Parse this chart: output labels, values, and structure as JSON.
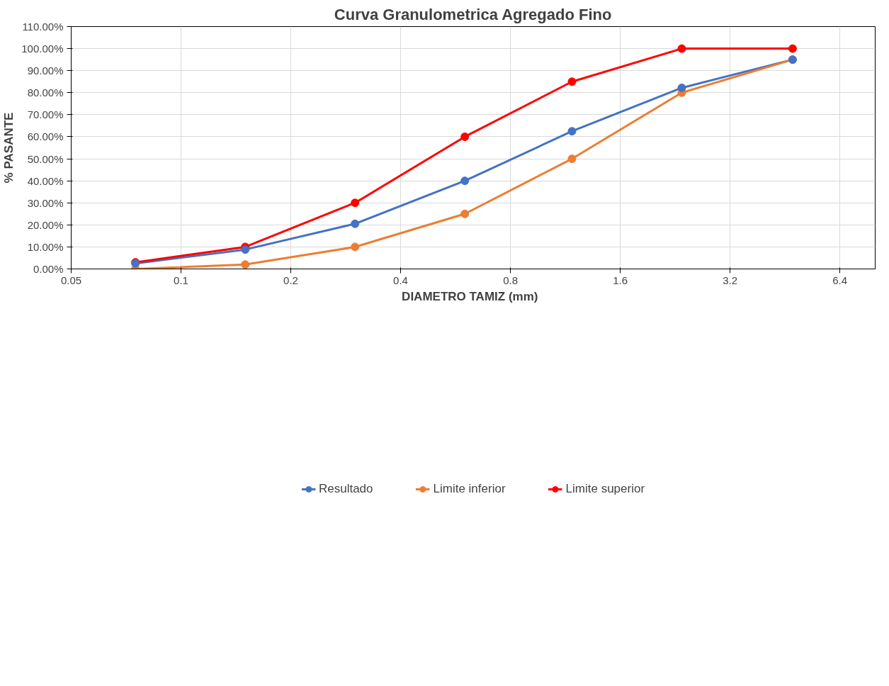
{
  "chart_data": {
    "type": "line",
    "title": "Curva Granulometrica Agregado Fino",
    "xlabel": "DIAMETRO  TAMIZ  (mm)",
    "ylabel": "% PASANTE",
    "x": [
      0.075,
      0.15,
      0.3,
      0.6,
      1.18,
      2.36,
      4.75
    ],
    "series": [
      {
        "name": "Resultado",
        "color": "#4472c4",
        "values": [
          2.5,
          8.8,
          20.5,
          40,
          62.5,
          82.2,
          95
        ]
      },
      {
        "name": "Limite inferior",
        "color": "#ed7d31",
        "values": [
          0,
          2,
          10,
          25,
          50,
          80,
          95
        ]
      },
      {
        "name": "Limite superior",
        "color": "#ff0000",
        "values": [
          3,
          10,
          30,
          60,
          85,
          100,
          100
        ]
      }
    ],
    "log": "x",
    "xlim": [
      0.05,
      8
    ],
    "xticks": [
      0.05,
      0.1,
      0.2,
      0.4,
      0.8,
      1.6,
      3.2,
      6.4
    ],
    "ylim": [
      0,
      110
    ],
    "yticks": [
      {
        "value": 0,
        "label": "0.00%"
      },
      {
        "value": 10,
        "label": "10.00%"
      },
      {
        "value": 20,
        "label": "20.00%"
      },
      {
        "value": 30,
        "label": "30.00%"
      },
      {
        "value": 40,
        "label": "40.00%"
      },
      {
        "value": 50,
        "label": "50.00%"
      },
      {
        "value": 60,
        "label": "60.00%"
      },
      {
        "value": 70,
        "label": "70.00%"
      },
      {
        "value": 80,
        "label": "80.00%"
      },
      {
        "value": 90,
        "label": "90.00%"
      },
      {
        "value": 100,
        "label": "100.00%"
      },
      {
        "value": 110,
        "label": "110.00%"
      }
    ],
    "grid": true,
    "legend": "bottom",
    "marker": "circle",
    "line_style": "solid"
  }
}
